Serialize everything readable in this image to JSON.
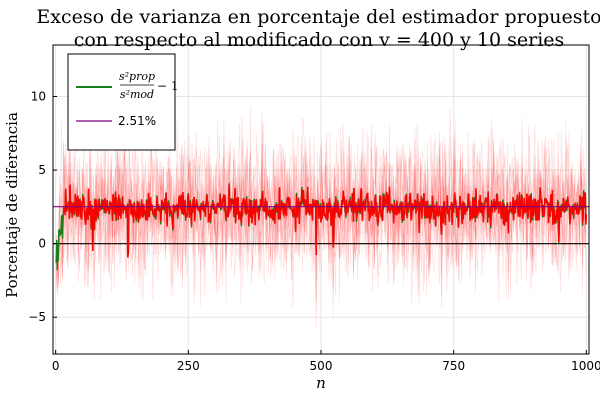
{
  "chart_data": {
    "type": "line",
    "title_line1": "Exceso de varianza en porcentaje del estimador propuesto",
    "title_line2": "con respecto al modificado con v = 400 y 10 series",
    "xlabel": "n",
    "ylabel": "Porcentaje de diferencia",
    "xlim": [
      -5,
      1005
    ],
    "ylim": [
      -7.5,
      13.5
    ],
    "x_ticks": [
      0,
      250,
      500,
      750,
      1000
    ],
    "y_ticks": [
      -5,
      0,
      5,
      10
    ],
    "grid": true,
    "legend_position": "top-left",
    "n_points": 1000,
    "series": [
      {
        "name": "s²prop / s²mod − 1",
        "legend_fraction_num": "s²prop",
        "legend_fraction_den": "s²mod",
        "legend_suffix": "− 1",
        "color": "#1a7f1a",
        "kind": "mean_line",
        "typical_level": 2.4,
        "min_value": -1.8,
        "max_value": 5.2
      },
      {
        "name": "individual series (10)",
        "color": "#ff0000",
        "kind": "band",
        "count": 10,
        "min_value": -7.1,
        "max_value": 12.2
      },
      {
        "name": "2.51%",
        "color": "#800080",
        "kind": "hline",
        "value": 2.51
      },
      {
        "name": "",
        "color": "#000000",
        "kind": "hline",
        "value": 0
      }
    ]
  }
}
